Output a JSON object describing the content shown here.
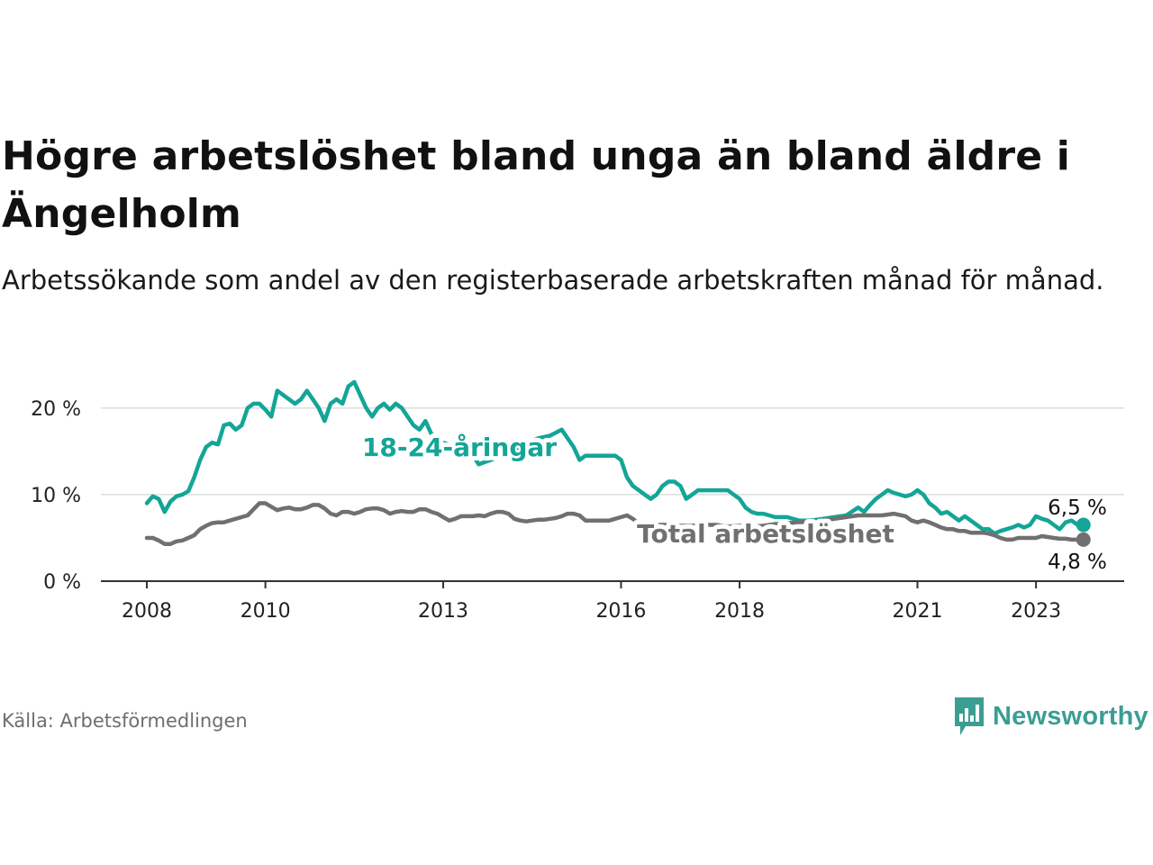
{
  "title": "Högre arbetslöshet bland unga än bland äldre i Ängelholm",
  "subtitle": "Arbetssökande som andel av den registerbaserade arbetskraften månad för månad.",
  "source": "Källa: Arbetsförmedlingen",
  "logo": {
    "text": "Newsworthy",
    "icon": "bar-chart-icon",
    "color": "#3a9e93"
  },
  "colors": {
    "youth": "#14a597",
    "total": "#707070",
    "grid": "#dddddd",
    "axis": "#333333"
  },
  "chart_data": {
    "type": "line",
    "title": "Högre arbetslöshet bland unga än bland äldre i Ängelholm",
    "xlabel": "",
    "ylabel": "",
    "xlim": [
      2007.9,
      2024.3
    ],
    "ylim": [
      0,
      23
    ],
    "y_ticks": [
      0,
      10,
      20
    ],
    "y_tick_labels": [
      "0 %",
      "10 %",
      "20 %"
    ],
    "x_ticks": [
      2008,
      2010,
      2013,
      2016,
      2018,
      2021,
      2023
    ],
    "x_tick_labels": [
      "2008",
      "2010",
      "2013",
      "2016",
      "2018",
      "2021",
      "2023"
    ],
    "grid": true,
    "series": [
      {
        "name": "18-24-åringar",
        "label": "18-24-åringar",
        "color": "#14a597",
        "end_label": "6,5 %",
        "x": [
          2008.0,
          2008.1,
          2008.2,
          2008.3,
          2008.4,
          2008.5,
          2008.6,
          2008.7,
          2008.8,
          2008.9,
          2009.0,
          2009.1,
          2009.2,
          2009.3,
          2009.4,
          2009.5,
          2009.6,
          2009.7,
          2009.8,
          2009.9,
          2010.0,
          2010.1,
          2010.2,
          2010.3,
          2010.4,
          2010.5,
          2010.6,
          2010.7,
          2010.8,
          2010.9,
          2011.0,
          2011.1,
          2011.2,
          2011.3,
          2011.4,
          2011.5,
          2011.6,
          2011.7,
          2011.8,
          2011.9,
          2012.0,
          2012.1,
          2012.2,
          2012.3,
          2012.4,
          2012.5,
          2012.6,
          2012.7,
          2012.8,
          2012.9,
          2013.0,
          2013.2,
          2013.4,
          2013.6,
          2013.8,
          2014.0,
          2014.2,
          2014.4,
          2014.6,
          2014.8,
          2015.0,
          2015.1,
          2015.2,
          2015.3,
          2015.4,
          2015.5,
          2015.6,
          2015.7,
          2015.8,
          2015.9,
          2016.0,
          2016.1,
          2016.2,
          2016.3,
          2016.4,
          2016.5,
          2016.6,
          2016.7,
          2016.8,
          2016.9,
          2017.0,
          2017.1,
          2017.2,
          2017.3,
          2017.4,
          2017.5,
          2017.6,
          2017.7,
          2017.8,
          2017.9,
          2018.0,
          2018.1,
          2018.2,
          2018.3,
          2018.4,
          2018.5,
          2018.6,
          2018.8,
          2019.0,
          2019.2,
          2019.4,
          2019.6,
          2019.8,
          2020.0,
          2020.1,
          2020.2,
          2020.3,
          2020.4,
          2020.5,
          2020.6,
          2020.7,
          2020.8,
          2020.9,
          2021.0,
          2021.1,
          2021.2,
          2021.3,
          2021.4,
          2021.5,
          2021.6,
          2021.7,
          2021.8,
          2021.9,
          2022.0,
          2022.1,
          2022.2,
          2022.3,
          2022.4,
          2022.5,
          2022.6,
          2022.7,
          2022.8,
          2022.9,
          2023.0,
          2023.1,
          2023.2,
          2023.3,
          2023.4,
          2023.5,
          2023.6,
          2023.7,
          2023.8
        ],
        "y": [
          9.0,
          9.8,
          9.5,
          8.0,
          9.2,
          9.8,
          10.0,
          10.4,
          12.0,
          14.0,
          15.5,
          16.0,
          15.8,
          18.0,
          18.2,
          17.5,
          18.0,
          20.0,
          20.5,
          20.5,
          19.8,
          19.0,
          22.0,
          21.5,
          21.0,
          20.5,
          21.0,
          22.0,
          21.0,
          20.0,
          18.5,
          20.5,
          21.0,
          20.5,
          22.5,
          23.0,
          21.5,
          20.0,
          19.0,
          20.0,
          20.5,
          19.8,
          20.5,
          20.0,
          19.0,
          18.0,
          17.5,
          18.5,
          17.0,
          16.5,
          16.0,
          15.5,
          15.5,
          13.5,
          14.0,
          14.5,
          15.0,
          16.0,
          16.5,
          16.8,
          17.5,
          16.5,
          15.5,
          14.0,
          14.5,
          14.5,
          14.5,
          14.5,
          14.5,
          14.5,
          14.0,
          12.0,
          11.0,
          10.5,
          10.0,
          9.5,
          10.0,
          11.0,
          11.5,
          11.5,
          11.0,
          9.5,
          10.0,
          10.5,
          10.5,
          10.5,
          10.5,
          10.5,
          10.5,
          10.0,
          9.5,
          8.5,
          8.0,
          7.8,
          7.8,
          7.6,
          7.4,
          7.4,
          7.0,
          7.0,
          7.2,
          7.4,
          7.6,
          8.5,
          8.0,
          8.8,
          9.5,
          10.0,
          10.5,
          10.2,
          10.0,
          9.8,
          10.0,
          10.5,
          10.0,
          9.0,
          8.5,
          7.8,
          8.0,
          7.5,
          7.0,
          7.5,
          7.0,
          6.5,
          6.0,
          6.0,
          5.5,
          5.8,
          6.0,
          6.2,
          6.5,
          6.2,
          6.5,
          7.5,
          7.2,
          7.0,
          6.5,
          6.0,
          6.8,
          7.0,
          6.5,
          6.5
        ]
      },
      {
        "name": "Total arbetslöshet",
        "label": "Total arbetslöshet",
        "color": "#707070",
        "end_label": "4,8 %",
        "x": [
          2008.0,
          2008.1,
          2008.2,
          2008.3,
          2008.4,
          2008.5,
          2008.6,
          2008.7,
          2008.8,
          2008.9,
          2009.0,
          2009.1,
          2009.2,
          2009.3,
          2009.4,
          2009.5,
          2009.6,
          2009.7,
          2009.8,
          2009.9,
          2010.0,
          2010.1,
          2010.2,
          2010.3,
          2010.4,
          2010.5,
          2010.6,
          2010.7,
          2010.8,
          2010.9,
          2011.0,
          2011.1,
          2011.2,
          2011.3,
          2011.4,
          2011.5,
          2011.6,
          2011.7,
          2011.8,
          2011.9,
          2012.0,
          2012.1,
          2012.2,
          2012.3,
          2012.4,
          2012.5,
          2012.6,
          2012.7,
          2012.8,
          2012.9,
          2013.0,
          2013.1,
          2013.2,
          2013.3,
          2013.4,
          2013.5,
          2013.6,
          2013.7,
          2013.8,
          2013.9,
          2014.0,
          2014.1,
          2014.2,
          2014.3,
          2014.4,
          2014.5,
          2014.6,
          2014.7,
          2014.8,
          2014.9,
          2015.0,
          2015.1,
          2015.2,
          2015.3,
          2015.4,
          2015.5,
          2015.6,
          2015.7,
          2015.8,
          2015.9,
          2016.0,
          2016.1,
          2016.2,
          2016.3,
          2016.4,
          2016.6,
          2016.8,
          2017.0,
          2017.2,
          2017.4,
          2017.6,
          2017.8,
          2018.0,
          2018.2,
          2018.4,
          2018.6,
          2018.8,
          2019.0,
          2019.2,
          2019.4,
          2019.6,
          2019.8,
          2020.0,
          2020.2,
          2020.4,
          2020.6,
          2020.8,
          2020.9,
          2021.0,
          2021.1,
          2021.2,
          2021.3,
          2021.4,
          2021.5,
          2021.6,
          2021.7,
          2021.8,
          2021.9,
          2022.0,
          2022.1,
          2022.2,
          2022.3,
          2022.4,
          2022.5,
          2022.6,
          2022.7,
          2022.8,
          2022.9,
          2023.0,
          2023.1,
          2023.2,
          2023.3,
          2023.4,
          2023.5,
          2023.6,
          2023.7,
          2023.8
        ],
        "y": [
          5.0,
          5.0,
          4.7,
          4.3,
          4.3,
          4.6,
          4.7,
          5.0,
          5.3,
          6.0,
          6.4,
          6.7,
          6.8,
          6.8,
          7.0,
          7.2,
          7.4,
          7.6,
          8.3,
          9.0,
          9.0,
          8.6,
          8.2,
          8.4,
          8.5,
          8.3,
          8.3,
          8.5,
          8.8,
          8.8,
          8.4,
          7.8,
          7.6,
          8.0,
          8.0,
          7.8,
          8.0,
          8.3,
          8.4,
          8.4,
          8.2,
          7.8,
          8.0,
          8.1,
          8.0,
          8.0,
          8.3,
          8.3,
          8.0,
          7.8,
          7.4,
          7.0,
          7.2,
          7.5,
          7.5,
          7.5,
          7.6,
          7.5,
          7.8,
          8.0,
          8.0,
          7.8,
          7.2,
          7.0,
          6.9,
          7.0,
          7.1,
          7.1,
          7.2,
          7.3,
          7.5,
          7.8,
          7.8,
          7.6,
          7.0,
          7.0,
          7.0,
          7.0,
          7.0,
          7.2,
          7.4,
          7.6,
          7.2,
          6.6,
          6.4,
          6.5,
          6.5,
          6.4,
          6.4,
          6.5,
          6.5,
          6.3,
          6.4,
          6.3,
          6.4,
          6.6,
          6.7,
          6.8,
          6.9,
          7.0,
          7.2,
          7.4,
          7.6,
          7.6,
          7.6,
          7.8,
          7.5,
          7.0,
          6.8,
          7.0,
          6.8,
          6.5,
          6.2,
          6.0,
          6.0,
          5.8,
          5.8,
          5.6,
          5.6,
          5.6,
          5.5,
          5.3,
          5.0,
          4.8,
          4.8,
          5.0,
          5.0,
          5.0,
          5.0,
          5.2,
          5.1,
          5.0,
          4.9,
          4.9,
          4.8,
          4.8,
          4.8
        ]
      }
    ]
  }
}
